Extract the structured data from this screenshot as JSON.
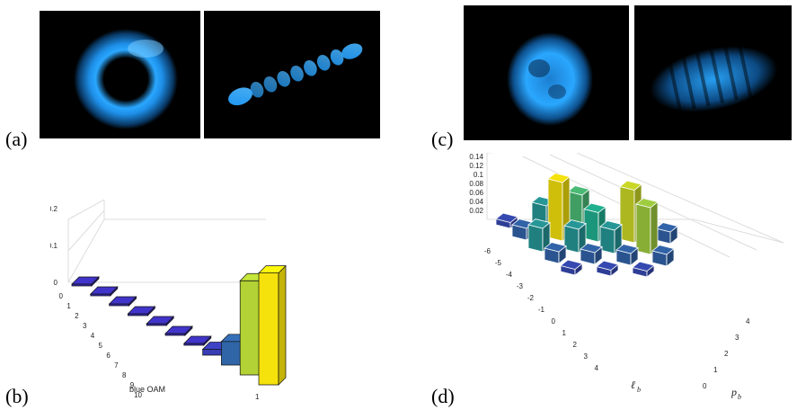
{
  "panels": {
    "a": "(a)",
    "b": "(b)",
    "c": "(c)",
    "d": "(d)"
  },
  "colors": {
    "beam_blue": "#1e9cff",
    "bar_low": "#3b2fb8",
    "bar_mid": "#21b08f",
    "bar_high": "#f5e10c",
    "grid": "#dddddd"
  },
  "chart_data": [
    {
      "type": "bar",
      "panel": "b",
      "title": "",
      "xlabel": "blue OAM",
      "ylabel": "",
      "z_ticks": [
        "0",
        "0.1",
        "0.2"
      ],
      "ylim": [
        0,
        0.22
      ],
      "categories": [
        "0",
        "1",
        "2",
        "3",
        "4",
        "5",
        "6",
        "7",
        "8",
        "9",
        "10"
      ],
      "secondary_axis_ticks": [
        "1"
      ],
      "values": [
        0.0,
        0.0,
        0.0,
        0.0,
        0.0,
        0.0,
        0.0,
        0.01,
        0.04,
        0.16,
        0.19
      ]
    },
    {
      "type": "bar",
      "panel": "d",
      "title": "",
      "xlabel": "ℓ",
      "xlabel_sub": "b",
      "ylabel": "p",
      "ylabel_sub": "b",
      "z_ticks": [
        "0.02",
        "0.04",
        "0.06",
        "0.08",
        "0.1",
        "0.12",
        "0.14"
      ],
      "ylim": [
        0,
        0.14
      ],
      "l_ticks": [
        "-6",
        "-5",
        "-4",
        "-3",
        "-2",
        "-1",
        "0",
        "1",
        "2",
        "3",
        "4"
      ],
      "p_ticks": [
        "0",
        "1",
        "2",
        "3",
        "4"
      ],
      "bars": [
        {
          "l": -6,
          "p": 0,
          "value": 0.01
        },
        {
          "l": -5,
          "p": 0,
          "value": 0.02
        },
        {
          "l": -5,
          "p": 1,
          "value": 0.04
        },
        {
          "l": -4,
          "p": 0,
          "value": 0.04
        },
        {
          "l": -4,
          "p": 1,
          "value": 0.1
        },
        {
          "l": -4,
          "p": 2,
          "value": 0.06
        },
        {
          "l": -3,
          "p": 0,
          "value": 0.02
        },
        {
          "l": -3,
          "p": 1,
          "value": 0.04
        },
        {
          "l": -3,
          "p": 2,
          "value": 0.05
        },
        {
          "l": -2,
          "p": 0,
          "value": 0.01
        },
        {
          "l": -2,
          "p": 1,
          "value": 0.02
        },
        {
          "l": -2,
          "p": 2,
          "value": 0.04
        },
        {
          "l": -2,
          "p": 3,
          "value": 0.09
        },
        {
          "l": -1,
          "p": 1,
          "value": 0.01
        },
        {
          "l": -1,
          "p": 2,
          "value": 0.02
        },
        {
          "l": -1,
          "p": 3,
          "value": 0.08
        },
        {
          "l": -1,
          "p": 4,
          "value": 0.02
        },
        {
          "l": 0,
          "p": 2,
          "value": 0.01
        },
        {
          "l": 0,
          "p": 3,
          "value": 0.02
        }
      ]
    }
  ]
}
